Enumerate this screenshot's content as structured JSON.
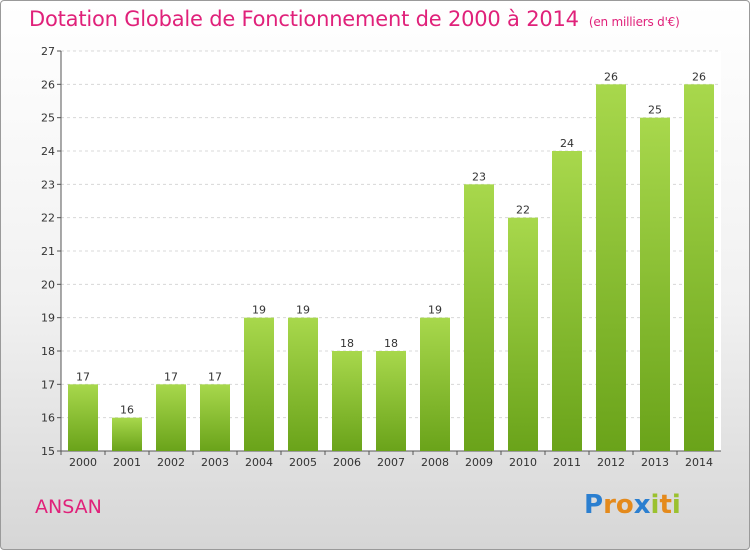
{
  "title": "Dotation Globale de Fonctionnement de 2000 à 2014",
  "subtitle": "(en milliers d'€)",
  "commune": "ANSAN",
  "logo": {
    "letters": [
      "P",
      "r",
      "o",
      "x",
      "i",
      "t",
      "i"
    ],
    "colors": [
      "#2b7fd0",
      "#e48a1c",
      "#e48a1c",
      "#2b7fd0",
      "#9bc12f",
      "#e48a1c",
      "#9bc12f"
    ]
  },
  "colors": {
    "title": "#e0217a",
    "bar_light": "#a8d84c",
    "bar_dark": "#6aa31a"
  },
  "chart_data": {
    "type": "bar",
    "categories": [
      "2000",
      "2001",
      "2002",
      "2003",
      "2004",
      "2005",
      "2006",
      "2007",
      "2008",
      "2009",
      "2010",
      "2011",
      "2012",
      "2013",
      "2014"
    ],
    "values": [
      17,
      16,
      17,
      17,
      19,
      19,
      18,
      18,
      19,
      23,
      22,
      24,
      26,
      25,
      26
    ],
    "data_labels": [
      "17",
      "16",
      "17",
      "17",
      "19",
      "19",
      "18",
      "18",
      "19",
      "23",
      "22",
      "24",
      "26",
      "25",
      "26"
    ],
    "yticks": [
      "15",
      "16",
      "17",
      "18",
      "19",
      "20",
      "21",
      "22",
      "23",
      "24",
      "25",
      "26",
      "27"
    ],
    "ylim": [
      15,
      27
    ],
    "xlabel": "",
    "ylabel": "",
    "grid": true
  }
}
